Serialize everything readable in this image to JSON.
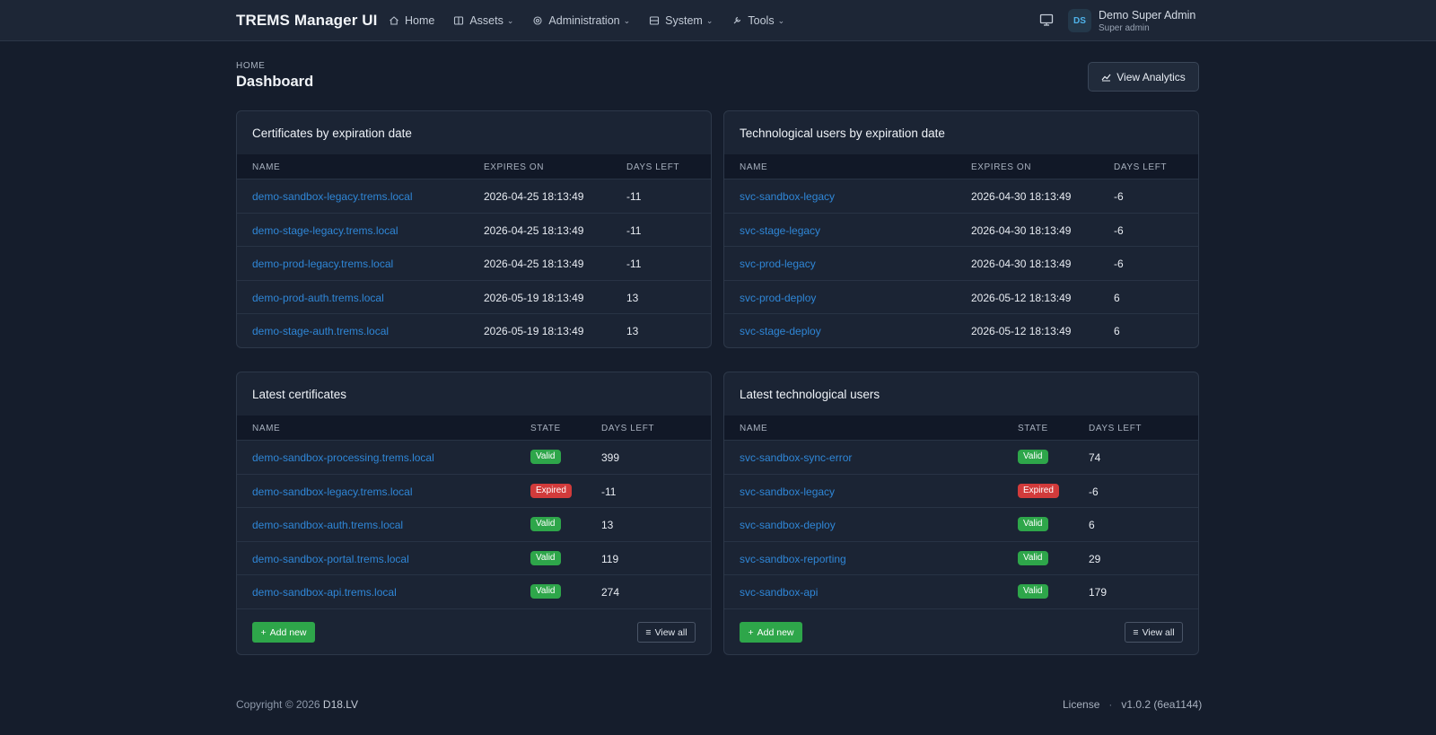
{
  "app": {
    "brand": "TREMS Manager UI",
    "nav": [
      {
        "label": "Home",
        "icon": "home-icon"
      },
      {
        "label": "Assets",
        "icon": "assets-icon",
        "dropdown": true
      },
      {
        "label": "Administration",
        "icon": "gear-icon",
        "dropdown": true
      },
      {
        "label": "System",
        "icon": "server-icon",
        "dropdown": true
      },
      {
        "label": "Tools",
        "icon": "wrench-icon",
        "dropdown": true
      }
    ],
    "user": {
      "initials": "DS",
      "name": "Demo Super Admin",
      "role": "Super admin"
    }
  },
  "page": {
    "breadcrumb": "HOME",
    "title": "Dashboard",
    "analytics_label": "View Analytics"
  },
  "cards": {
    "certs_exp": {
      "title": "Certificates by expiration date",
      "headers": [
        "NAME",
        "EXPIRES ON",
        "DAYS LEFT"
      ],
      "rows": [
        {
          "name": "demo-sandbox-legacy.trems.local",
          "expires": "2026-04-25 18:13:49",
          "days": "-11"
        },
        {
          "name": "demo-stage-legacy.trems.local",
          "expires": "2026-04-25 18:13:49",
          "days": "-11"
        },
        {
          "name": "demo-prod-legacy.trems.local",
          "expires": "2026-04-25 18:13:49",
          "days": "-11"
        },
        {
          "name": "demo-prod-auth.trems.local",
          "expires": "2026-05-19 18:13:49",
          "days": "13"
        },
        {
          "name": "demo-stage-auth.trems.local",
          "expires": "2026-05-19 18:13:49",
          "days": "13"
        }
      ]
    },
    "users_exp": {
      "title": "Technological users by expiration date",
      "headers": [
        "NAME",
        "EXPIRES ON",
        "DAYS LEFT"
      ],
      "rows": [
        {
          "name": "svc-sandbox-legacy",
          "expires": "2026-04-30 18:13:49",
          "days": "-6"
        },
        {
          "name": "svc-stage-legacy",
          "expires": "2026-04-30 18:13:49",
          "days": "-6"
        },
        {
          "name": "svc-prod-legacy",
          "expires": "2026-04-30 18:13:49",
          "days": "-6"
        },
        {
          "name": "svc-prod-deploy",
          "expires": "2026-05-12 18:13:49",
          "days": "6"
        },
        {
          "name": "svc-stage-deploy",
          "expires": "2026-05-12 18:13:49",
          "days": "6"
        }
      ]
    },
    "certs_latest": {
      "title": "Latest certificates",
      "headers": [
        "NAME",
        "STATE",
        "DAYS LEFT"
      ],
      "rows": [
        {
          "name": "demo-sandbox-processing.trems.local",
          "state": "Valid",
          "days": "399"
        },
        {
          "name": "demo-sandbox-legacy.trems.local",
          "state": "Expired",
          "days": "-11"
        },
        {
          "name": "demo-sandbox-auth.trems.local",
          "state": "Valid",
          "days": "13"
        },
        {
          "name": "demo-sandbox-portal.trems.local",
          "state": "Valid",
          "days": "119"
        },
        {
          "name": "demo-sandbox-api.trems.local",
          "state": "Valid",
          "days": "274"
        }
      ],
      "add_label": "Add new",
      "viewall_label": "View all"
    },
    "users_latest": {
      "title": "Latest technological users",
      "headers": [
        "NAME",
        "STATE",
        "DAYS LEFT"
      ],
      "rows": [
        {
          "name": "svc-sandbox-sync-error",
          "state": "Valid",
          "days": "74"
        },
        {
          "name": "svc-sandbox-legacy",
          "state": "Expired",
          "days": "-6"
        },
        {
          "name": "svc-sandbox-deploy",
          "state": "Valid",
          "days": "6"
        },
        {
          "name": "svc-sandbox-reporting",
          "state": "Valid",
          "days": "29"
        },
        {
          "name": "svc-sandbox-api",
          "state": "Valid",
          "days": "179"
        }
      ],
      "add_label": "Add new",
      "viewall_label": "View all"
    }
  },
  "footer": {
    "copyright": "Copyright © 2026",
    "company": "D18.LV",
    "license": "License",
    "separator": "·",
    "version": "v1.0.2 (6ea1144)"
  },
  "colors": {
    "background": "#151d2c",
    "link": "#2f86d6",
    "valid": "#2ea64a",
    "expired": "#d23b3b"
  }
}
